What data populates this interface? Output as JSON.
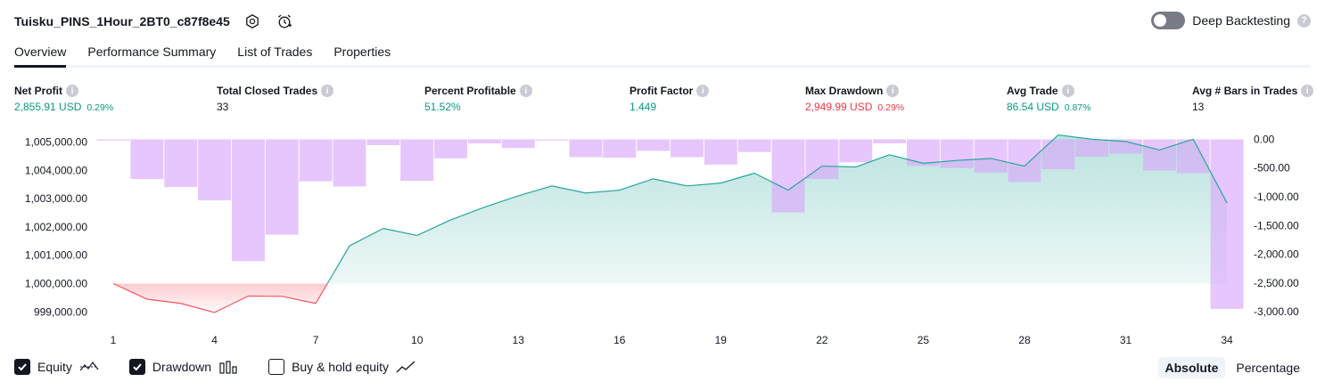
{
  "header": {
    "strategy_name": "Tuisku_PINS_1Hour_2BT0_c87f8e45",
    "deep_backtesting_label": "Deep Backtesting",
    "deep_backtesting_enabled": false
  },
  "tabs": [
    {
      "label": "Overview",
      "active": true
    },
    {
      "label": "Performance Summary",
      "active": false
    },
    {
      "label": "List of Trades",
      "active": false
    },
    {
      "label": "Properties",
      "active": false
    }
  ],
  "metrics": {
    "net_profit": {
      "label": "Net Profit",
      "value": "2,855.91 USD",
      "pct": "0.29%"
    },
    "total_closed_trades": {
      "label": "Total Closed Trades",
      "value": "33"
    },
    "percent_profitable": {
      "label": "Percent Profitable",
      "value": "51.52%"
    },
    "profit_factor": {
      "label": "Profit Factor",
      "value": "1.449"
    },
    "max_drawdown": {
      "label": "Max Drawdown",
      "value": "2,949.99 USD",
      "pct": "0.29%"
    },
    "avg_trade": {
      "label": "Avg Trade",
      "value": "86.54 USD",
      "pct": "0.87%"
    },
    "avg_bars": {
      "label": "Avg # Bars in Trades",
      "value": "13"
    }
  },
  "colors": {
    "profit": "#089981",
    "loss": "#f23645",
    "drawdown_bar": "#e1bcfd",
    "equity_line": "#26a69a",
    "loss_line": "#f7525f"
  },
  "chart_data": {
    "type": "line",
    "x": [
      1,
      2,
      3,
      4,
      5,
      6,
      7,
      8,
      9,
      10,
      11,
      12,
      13,
      14,
      15,
      16,
      17,
      18,
      19,
      20,
      21,
      22,
      23,
      24,
      25,
      26,
      27,
      28,
      29,
      30,
      31,
      32,
      33,
      34
    ],
    "xticks": [
      "1",
      "4",
      "7",
      "10",
      "13",
      "16",
      "19",
      "22",
      "25",
      "28",
      "31",
      "34"
    ],
    "baseline": 1000000,
    "left_axis": {
      "ticks": [
        "1,005,000.00",
        "1,004,000.00",
        "1,003,000.00",
        "1,002,000.00",
        "1,001,000.00",
        "1,000,000.00",
        "999,000.00"
      ],
      "ylim": [
        998600,
        1005300
      ]
    },
    "right_axis": {
      "ticks": [
        "0.00",
        "-500.00",
        "-1,000.00",
        "-1,500.00",
        "-2,000.00",
        "-2,500.00",
        "-3,000.00"
      ],
      "ylim": [
        -3200,
        100
      ]
    },
    "series": [
      {
        "name": "Equity",
        "values": [
          1000000,
          999450,
          999300,
          998980,
          999560,
          999550,
          999300,
          1001330,
          1001950,
          1001700,
          1002250,
          1002700,
          1003100,
          1003450,
          1003200,
          1003300,
          1003700,
          1003450,
          1003550,
          1003900,
          1003300,
          1004150,
          1004120,
          1004550,
          1004250,
          1004350,
          1004420,
          1004150,
          1005250,
          1005100,
          1005020,
          1004720,
          1005100,
          1002850
        ]
      },
      {
        "name": "Drawdown",
        "values": [
          -20,
          -690,
          -830,
          -1060,
          -2120,
          -1660,
          -730,
          -820,
          -100,
          -720,
          -330,
          -70,
          -150,
          -20,
          -310,
          -320,
          -200,
          -310,
          -440,
          -220,
          -1270,
          -690,
          -400,
          -70,
          -460,
          -500,
          -580,
          -740,
          -520,
          -300,
          -250,
          -540,
          -590,
          -2950
        ]
      }
    ]
  },
  "legend": {
    "equity_label": "Equity",
    "drawdown_label": "Drawdown",
    "buy_hold_label": "Buy & hold equity",
    "equity_checked": true,
    "drawdown_checked": true,
    "buy_hold_checked": false
  },
  "mode": {
    "absolute_label": "Absolute",
    "percentage_label": "Percentage",
    "active": "Absolute"
  }
}
